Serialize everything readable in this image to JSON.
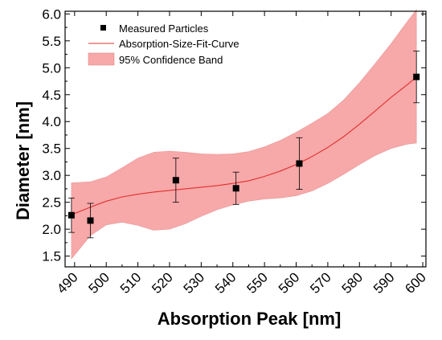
{
  "chart_data": {
    "type": "scatter",
    "title": "",
    "xlabel": "Absorption Peak [nm]",
    "ylabel": "Diameter [nm]",
    "xlim": [
      487,
      601
    ],
    "ylim": [
      1.3,
      6.05
    ],
    "x_ticks": [
      490,
      500,
      510,
      520,
      530,
      540,
      550,
      560,
      570,
      580,
      590,
      600
    ],
    "y_ticks": [
      1.5,
      2.0,
      2.5,
      3.0,
      3.5,
      4.0,
      4.5,
      5.0,
      5.5,
      6.0
    ],
    "x_tick_labels": [
      "490",
      "500",
      "510",
      "520",
      "530",
      "540",
      "550",
      "560",
      "570",
      "580",
      "590",
      "600"
    ],
    "y_tick_labels": [
      "1.5",
      "2.0",
      "2.5",
      "3.0",
      "3.5",
      "4.0",
      "4.5",
      "5.0",
      "5.5",
      "6.0"
    ],
    "grid": false,
    "legend_position": "top-left",
    "series": [
      {
        "name": "Measured Particles",
        "kind": "points_with_errorbars",
        "color": "#000000",
        "points": [
          {
            "x": 489,
            "y": 2.26,
            "err": 0.32
          },
          {
            "x": 495,
            "y": 2.16,
            "err": 0.32
          },
          {
            "x": 522,
            "y": 2.91,
            "err": 0.41
          },
          {
            "x": 541,
            "y": 2.76,
            "err": 0.3
          },
          {
            "x": 561,
            "y": 3.22,
            "err": 0.48
          },
          {
            "x": 598,
            "y": 4.83,
            "err": 0.48
          }
        ]
      },
      {
        "name": "Absorption-Size-Fit-Curve",
        "kind": "line",
        "color": "#e03030",
        "x": [
          489,
          495,
          500,
          505,
          510,
          515,
          520,
          525,
          530,
          535,
          540,
          545,
          550,
          555,
          560,
          565,
          570,
          575,
          580,
          585,
          590,
          595,
          598
        ],
        "y": [
          2.27,
          2.41,
          2.52,
          2.6,
          2.65,
          2.69,
          2.72,
          2.75,
          2.78,
          2.81,
          2.85,
          2.9,
          2.98,
          3.08,
          3.2,
          3.35,
          3.52,
          3.72,
          3.95,
          4.2,
          4.45,
          4.68,
          4.83
        ]
      },
      {
        "name": "95% Confidence Band",
        "kind": "band",
        "color": "#f7a8a8",
        "x": [
          489,
          495,
          500,
          505,
          510,
          515,
          520,
          525,
          530,
          535,
          540,
          545,
          550,
          555,
          560,
          565,
          570,
          575,
          580,
          585,
          590,
          595,
          598
        ],
        "upper": [
          2.86,
          2.88,
          2.97,
          3.14,
          3.32,
          3.43,
          3.45,
          3.43,
          3.4,
          3.39,
          3.4,
          3.44,
          3.53,
          3.65,
          3.8,
          3.97,
          4.15,
          4.4,
          4.72,
          5.08,
          5.45,
          5.85,
          6.08
        ],
        "lower": [
          1.45,
          1.88,
          2.08,
          2.13,
          2.07,
          1.98,
          2.0,
          2.1,
          2.24,
          2.36,
          2.45,
          2.52,
          2.56,
          2.58,
          2.62,
          2.71,
          2.85,
          3.02,
          3.2,
          3.37,
          3.5,
          3.58,
          3.6
        ]
      }
    ]
  }
}
